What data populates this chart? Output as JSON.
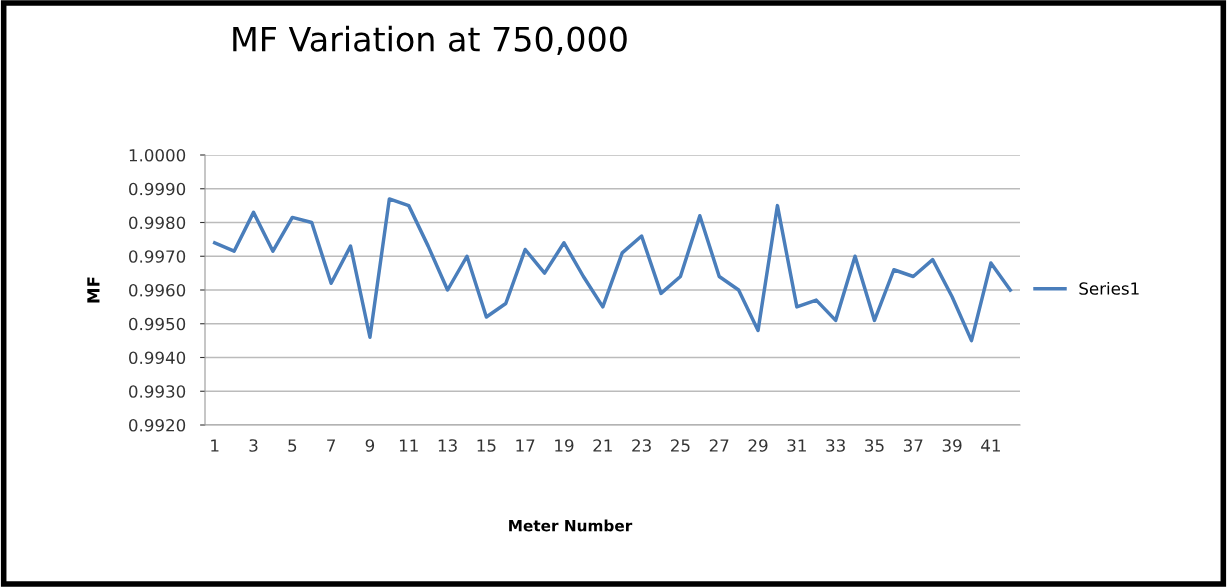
{
  "chart_data": {
    "type": "line",
    "title": "MF Variation at 750,000",
    "xlabel": "Meter Number",
    "ylabel": "MF",
    "categories": [
      "1",
      null,
      "3",
      null,
      "5",
      null,
      "7",
      null,
      "9",
      null,
      "11",
      null,
      "13",
      null,
      "15",
      null,
      "17",
      null,
      "19",
      null,
      "21",
      null,
      "23",
      null,
      "25",
      null,
      "27",
      null,
      "29",
      null,
      "31",
      null,
      "33",
      null,
      "35",
      null,
      "37",
      null,
      "39",
      null,
      "41",
      null
    ],
    "series": [
      {
        "name": "Series1",
        "color": "#4a7ebb",
        "values": [
          0.9974,
          0.99715,
          0.9983,
          0.99715,
          0.99815,
          0.998,
          0.9962,
          0.9973,
          0.9946,
          0.9987,
          0.9985,
          0.9973,
          0.996,
          0.997,
          0.9952,
          0.9956,
          0.9972,
          0.9965,
          0.9974,
          0.9964,
          0.9955,
          0.9971,
          0.9976,
          0.9959,
          0.9964,
          0.9982,
          0.9964,
          0.996,
          0.9948,
          0.9985,
          0.9955,
          0.9957,
          0.9951,
          0.997,
          0.9951,
          0.9966,
          0.9964,
          0.9969,
          0.9958,
          0.9945,
          0.9968,
          0.996
        ]
      }
    ],
    "ylim": [
      0.992,
      1.0
    ],
    "yticks": [
      {
        "value": 0.992,
        "label": "0.9920"
      },
      {
        "value": 0.993,
        "label": "0.9930"
      },
      {
        "value": 0.994,
        "label": "0.9940"
      },
      {
        "value": 0.995,
        "label": "0.9950"
      },
      {
        "value": 0.996,
        "label": "0.9960"
      },
      {
        "value": 0.997,
        "label": "0.9970"
      },
      {
        "value": 0.998,
        "label": "0.9980"
      },
      {
        "value": 0.999,
        "label": "0.9990"
      },
      {
        "value": 1.0,
        "label": "1.0000"
      }
    ],
    "grid": "y",
    "legend": "right",
    "marker": "none",
    "line_style": "solid"
  }
}
